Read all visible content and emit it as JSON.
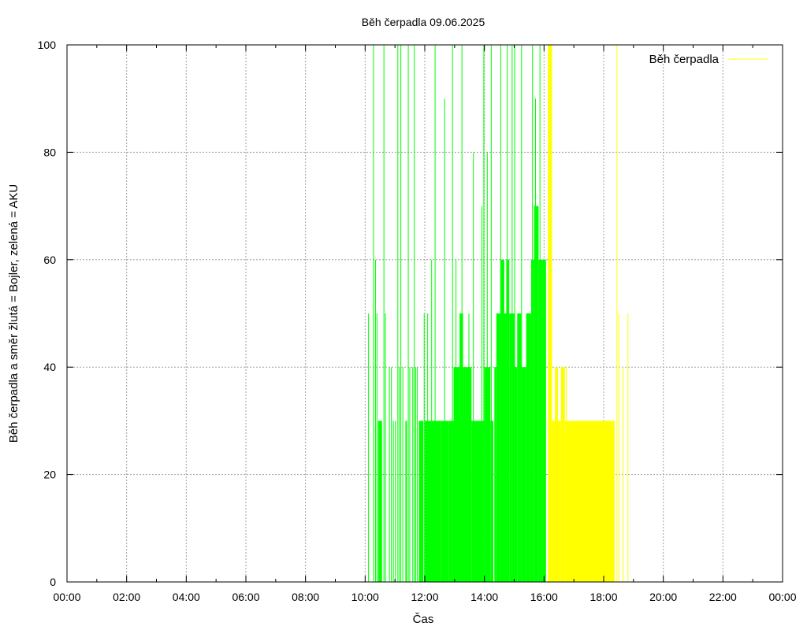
{
  "chart_data": {
    "type": "area",
    "title": "Běh čerpadla 09.06.2025",
    "xlabel": "Čas",
    "ylabel": "Běh čerpadla a směr žlutá = Bojler, zelená = AKU",
    "xlim": [
      "00:00",
      "24:00"
    ],
    "ylim": [
      0,
      100
    ],
    "x_ticks": [
      "00:00",
      "02:00",
      "04:00",
      "06:00",
      "08:00",
      "10:00",
      "12:00",
      "14:00",
      "16:00",
      "18:00",
      "20:00",
      "22:00",
      "00:00"
    ],
    "y_ticks": [
      0,
      20,
      40,
      60,
      80,
      100
    ],
    "grid": true,
    "legend": {
      "placement": "top-right",
      "entries": [
        "Běh čerpadla"
      ]
    },
    "colors": {
      "aku": "#00ff00",
      "bojler": "#ffff00",
      "grid": "#a0a0a0",
      "legend_line": "#ffff00"
    },
    "series": [
      {
        "direction": "AKU",
        "color": "#00ff00",
        "blocks": [
          {
            "from": "10:26",
            "to": "10:34",
            "value": 30
          },
          {
            "from": "11:21",
            "to": "11:24",
            "value": 30
          },
          {
            "from": "11:48",
            "to": "11:57",
            "value": 30
          },
          {
            "from": "12:00",
            "to": "12:32",
            "value": 30
          },
          {
            "from": "12:32",
            "to": "12:42",
            "value": 30
          },
          {
            "from": "12:42",
            "to": "12:48",
            "value": 30
          },
          {
            "from": "12:48",
            "to": "13:24",
            "value": 30
          },
          {
            "from": "12:58",
            "to": "13:10",
            "value": 40
          },
          {
            "from": "13:10",
            "to": "13:17",
            "value": 50
          },
          {
            "from": "13:17",
            "to": "13:24",
            "value": 40
          },
          {
            "from": "13:24",
            "to": "13:34",
            "value": 40
          },
          {
            "from": "13:34",
            "to": "14:00",
            "value": 30
          },
          {
            "from": "13:43",
            "to": "13:47",
            "value": 30
          },
          {
            "from": "14:00",
            "to": "14:12",
            "value": 40
          },
          {
            "from": "14:12",
            "to": "14:18",
            "value": 30
          },
          {
            "from": "14:20",
            "to": "14:24",
            "value": 40
          },
          {
            "from": "14:24",
            "to": "14:32",
            "value": 50
          },
          {
            "from": "14:32",
            "to": "14:48",
            "value": 50
          },
          {
            "from": "14:32",
            "to": "14:40",
            "value": 60
          },
          {
            "from": "14:40",
            "to": "14:44",
            "value": 50
          },
          {
            "from": "14:44",
            "to": "14:50",
            "value": 60
          },
          {
            "from": "14:50",
            "to": "15:00",
            "value": 50
          },
          {
            "from": "15:00",
            "to": "15:06",
            "value": 40
          },
          {
            "from": "15:06",
            "to": "15:14",
            "value": 50
          },
          {
            "from": "15:14",
            "to": "15:24",
            "value": 40
          },
          {
            "from": "15:24",
            "to": "15:34",
            "value": 50
          },
          {
            "from": "15:34",
            "to": "15:40",
            "value": 60
          },
          {
            "from": "15:40",
            "to": "15:49",
            "value": 70
          },
          {
            "from": "15:49",
            "to": "15:57",
            "value": 60
          },
          {
            "from": "15:57",
            "to": "16:04",
            "value": 60
          }
        ],
        "spikes": [
          {
            "t": "10:06",
            "value": 50
          },
          {
            "t": "10:16",
            "value": 100
          },
          {
            "t": "10:20",
            "value": 60
          },
          {
            "t": "10:23",
            "value": 50
          },
          {
            "t": "10:37",
            "value": 100
          },
          {
            "t": "10:40",
            "value": 50
          },
          {
            "t": "10:48",
            "value": 40
          },
          {
            "t": "10:52",
            "value": 40
          },
          {
            "t": "10:56",
            "value": 30
          },
          {
            "t": "11:00",
            "value": 30
          },
          {
            "t": "11:05",
            "value": 100
          },
          {
            "t": "11:08",
            "value": 40
          },
          {
            "t": "11:11",
            "value": 100
          },
          {
            "t": "11:15",
            "value": 40
          },
          {
            "t": "11:26",
            "value": 100
          },
          {
            "t": "11:29",
            "value": 40
          },
          {
            "t": "11:35",
            "value": 40
          },
          {
            "t": "11:38",
            "value": 100
          },
          {
            "t": "11:41",
            "value": 40
          },
          {
            "t": "11:44",
            "value": 40
          },
          {
            "t": "11:58",
            "value": 50
          },
          {
            "t": "12:05",
            "value": 50
          },
          {
            "t": "12:13",
            "value": 60
          },
          {
            "t": "12:20",
            "value": 100
          },
          {
            "t": "12:28",
            "value": 30
          },
          {
            "t": "12:39",
            "value": 90
          },
          {
            "t": "12:55",
            "value": 100
          },
          {
            "t": "13:02",
            "value": 60
          },
          {
            "t": "13:14",
            "value": 100
          },
          {
            "t": "13:28",
            "value": 50
          },
          {
            "t": "13:37",
            "value": 80
          },
          {
            "t": "13:54",
            "value": 70
          },
          {
            "t": "13:58",
            "value": 100
          },
          {
            "t": "14:05",
            "value": 80
          },
          {
            "t": "14:13",
            "value": 100
          },
          {
            "t": "14:32",
            "value": 100
          },
          {
            "t": "14:45",
            "value": 100
          },
          {
            "t": "14:55",
            "value": 100
          },
          {
            "t": "15:00",
            "value": 100
          },
          {
            "t": "15:14",
            "value": 100
          },
          {
            "t": "15:36",
            "value": 100
          },
          {
            "t": "15:42",
            "value": 90
          },
          {
            "t": "15:51",
            "value": 100
          }
        ]
      },
      {
        "direction": "Bojler",
        "color": "#ffff00",
        "blocks": [
          {
            "from": "16:08",
            "to": "16:16",
            "value": 100
          },
          {
            "from": "16:16",
            "to": "16:34",
            "value": 30
          },
          {
            "from": "16:22",
            "to": "16:28",
            "value": 40
          },
          {
            "from": "16:34",
            "to": "16:42",
            "value": 40
          },
          {
            "from": "16:42",
            "to": "18:22",
            "value": 30
          }
        ],
        "spikes": [
          {
            "t": "16:08",
            "value": 100
          },
          {
            "t": "16:14",
            "value": 100
          },
          {
            "t": "16:44",
            "value": 40
          },
          {
            "t": "18:26",
            "value": 100
          },
          {
            "t": "18:30",
            "value": 50
          },
          {
            "t": "18:38",
            "value": 40
          },
          {
            "t": "18:48",
            "value": 50
          }
        ]
      }
    ]
  }
}
